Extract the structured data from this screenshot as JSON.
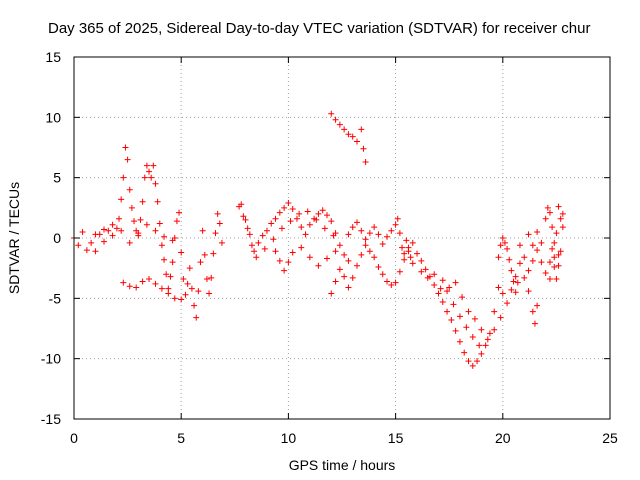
{
  "chart_data": {
    "type": "scatter",
    "title": "Day 365 of 2025, Sidereal Day-to-day VTEC variation (SDTVAR) for receiver chur",
    "xlabel": "GPS time / hours",
    "ylabel": "SDTVAR / TECUs",
    "xlim": [
      0,
      25
    ],
    "ylim": [
      -15,
      15
    ],
    "x_ticks": [
      0,
      5,
      10,
      15,
      20,
      25
    ],
    "y_ticks": [
      -15,
      -10,
      -5,
      0,
      5,
      10,
      15
    ],
    "grid": true,
    "marker": "+",
    "color": "#ff0000",
    "series": [
      {
        "name": "SDTVAR",
        "points": [
          [
            0.0,
            0.0
          ],
          [
            0.2,
            -0.6
          ],
          [
            0.4,
            0.5
          ],
          [
            0.6,
            -1.0
          ],
          [
            0.8,
            -0.4
          ],
          [
            1.0,
            -1.1
          ],
          [
            1.2,
            0.3
          ],
          [
            1.4,
            -0.3
          ],
          [
            1.6,
            0.6
          ],
          [
            1.8,
            0.2
          ],
          [
            2.0,
            0.8
          ],
          [
            2.1,
            1.6
          ],
          [
            2.2,
            3.2
          ],
          [
            2.3,
            5.0
          ],
          [
            2.4,
            7.5
          ],
          [
            2.5,
            6.5
          ],
          [
            2.6,
            4.0
          ],
          [
            2.7,
            2.5
          ],
          [
            2.8,
            1.4
          ],
          [
            2.9,
            0.6
          ],
          [
            3.0,
            0.4
          ],
          [
            3.1,
            1.5
          ],
          [
            3.2,
            3.0
          ],
          [
            3.3,
            5.0
          ],
          [
            3.4,
            6.0
          ],
          [
            3.5,
            5.5
          ],
          [
            3.6,
            5.0
          ],
          [
            3.7,
            6.0
          ],
          [
            3.8,
            4.5
          ],
          [
            3.9,
            3.0
          ],
          [
            4.0,
            1.2
          ],
          [
            4.1,
            -0.6
          ],
          [
            4.2,
            -1.8
          ],
          [
            4.3,
            -3.0
          ],
          [
            4.4,
            -4.2
          ],
          [
            4.5,
            -3.2
          ],
          [
            4.6,
            -2.0
          ],
          [
            4.7,
            0.0
          ],
          [
            4.8,
            1.4
          ],
          [
            4.9,
            2.1
          ],
          [
            5.0,
            -1.2
          ],
          [
            5.1,
            -3.4
          ],
          [
            5.2,
            -4.7
          ],
          [
            5.3,
            -3.8
          ],
          [
            5.4,
            -2.5
          ],
          [
            5.5,
            -4.2
          ],
          [
            5.6,
            -5.6
          ],
          [
            5.7,
            -6.6
          ],
          [
            5.8,
            -4.4
          ],
          [
            5.9,
            -2.0
          ],
          [
            6.0,
            0.6
          ],
          [
            6.1,
            -1.4
          ],
          [
            6.2,
            -3.4
          ],
          [
            6.3,
            -4.6
          ],
          [
            6.4,
            -3.3
          ],
          [
            6.5,
            -1.3
          ],
          [
            6.6,
            0.4
          ],
          [
            6.7,
            2.0
          ],
          [
            6.8,
            1.2
          ],
          [
            6.9,
            -0.4
          ],
          [
            2.3,
            -3.7
          ],
          [
            2.6,
            -4.0
          ],
          [
            2.9,
            -4.1
          ],
          [
            3.2,
            -3.6
          ],
          [
            3.5,
            -3.4
          ],
          [
            3.8,
            -3.8
          ],
          [
            4.1,
            -4.2
          ],
          [
            4.4,
            -4.6
          ],
          [
            4.7,
            -5.0
          ],
          [
            5.0,
            -5.1
          ],
          [
            1.0,
            0.3
          ],
          [
            1.4,
            0.7
          ],
          [
            1.8,
            1.1
          ],
          [
            2.2,
            0.6
          ],
          [
            2.6,
            -0.4
          ],
          [
            3.0,
            0.2
          ],
          [
            3.4,
            1.1
          ],
          [
            3.8,
            0.6
          ],
          [
            4.2,
            0.1
          ],
          [
            4.6,
            -0.2
          ],
          [
            7.7,
            2.6
          ],
          [
            7.8,
            2.8
          ],
          [
            7.9,
            1.8
          ],
          [
            8.0,
            1.5
          ],
          [
            8.1,
            0.8
          ],
          [
            8.2,
            0.3
          ],
          [
            8.3,
            -0.6
          ],
          [
            8.4,
            -1.1
          ],
          [
            8.6,
            -0.4
          ],
          [
            8.8,
            0.2
          ],
          [
            9.0,
            0.6
          ],
          [
            9.2,
            1.2
          ],
          [
            9.4,
            1.6
          ],
          [
            9.6,
            2.1
          ],
          [
            9.8,
            2.5
          ],
          [
            10.0,
            2.9
          ],
          [
            10.2,
            2.4
          ],
          [
            10.4,
            1.6
          ],
          [
            10.6,
            0.9
          ],
          [
            10.8,
            0.3
          ],
          [
            11.0,
            1.1
          ],
          [
            11.2,
            1.6
          ],
          [
            11.4,
            2.0
          ],
          [
            11.6,
            2.3
          ],
          [
            11.8,
            1.9
          ],
          [
            12.0,
            1.4
          ],
          [
            12.2,
            0.4
          ],
          [
            12.4,
            -0.6
          ],
          [
            12.6,
            -1.4
          ],
          [
            12.8,
            -1.9
          ],
          [
            8.5,
            -1.6
          ],
          [
            8.9,
            -0.9
          ],
          [
            9.3,
            -0.1
          ],
          [
            9.7,
            0.8
          ],
          [
            10.1,
            1.4
          ],
          [
            10.5,
            2.0
          ],
          [
            10.9,
            2.2
          ],
          [
            11.3,
            1.5
          ],
          [
            11.7,
            0.8
          ],
          [
            12.1,
            0.2
          ],
          [
            9.4,
            -1.1
          ],
          [
            9.6,
            -1.9
          ],
          [
            9.8,
            -2.7
          ],
          [
            10.0,
            -2.0
          ],
          [
            10.2,
            -1.2
          ],
          [
            10.6,
            -0.8
          ],
          [
            11.0,
            -1.6
          ],
          [
            11.4,
            -2.3
          ],
          [
            11.8,
            -1.7
          ],
          [
            12.2,
            -1.1
          ],
          [
            12.0,
            10.3
          ],
          [
            12.2,
            9.8
          ],
          [
            12.4,
            9.4
          ],
          [
            12.6,
            9.0
          ],
          [
            12.8,
            8.6
          ],
          [
            13.0,
            8.4
          ],
          [
            13.2,
            8.0
          ],
          [
            13.4,
            9.0
          ],
          [
            13.5,
            7.4
          ],
          [
            13.6,
            6.3
          ],
          [
            12.0,
            -4.6
          ],
          [
            12.2,
            -3.6
          ],
          [
            12.4,
            -2.6
          ],
          [
            12.6,
            -3.2
          ],
          [
            12.8,
            -4.1
          ],
          [
            13.0,
            -3.3
          ],
          [
            13.2,
            -2.3
          ],
          [
            13.4,
            -1.4
          ],
          [
            13.6,
            -0.6
          ],
          [
            13.8,
            -1.1
          ],
          [
            14.0,
            -1.6
          ],
          [
            14.2,
            -2.4
          ],
          [
            14.4,
            -3.0
          ],
          [
            14.6,
            -3.6
          ],
          [
            14.8,
            -3.9
          ],
          [
            15.0,
            -3.7
          ],
          [
            15.2,
            -2.8
          ],
          [
            15.4,
            -1.8
          ],
          [
            15.6,
            -0.8
          ],
          [
            15.8,
            -0.4
          ],
          [
            12.8,
            0.3
          ],
          [
            13.0,
            0.9
          ],
          [
            13.2,
            1.3
          ],
          [
            13.4,
            0.6
          ],
          [
            13.6,
            -0.1
          ],
          [
            13.8,
            0.4
          ],
          [
            14.0,
            0.9
          ],
          [
            14.2,
            0.3
          ],
          [
            14.4,
            -0.5
          ],
          [
            14.6,
            0.1
          ],
          [
            14.8,
            0.6
          ],
          [
            15.0,
            1.1
          ],
          [
            15.1,
            1.6
          ],
          [
            15.2,
            0.4
          ],
          [
            15.3,
            -0.8
          ],
          [
            15.4,
            -1.3
          ],
          [
            15.5,
            -0.2
          ],
          [
            15.6,
            -1.1
          ],
          [
            15.7,
            -1.6
          ],
          [
            15.8,
            -2.1
          ],
          [
            16.0,
            -1.3
          ],
          [
            16.2,
            -1.9
          ],
          [
            16.4,
            -2.6
          ],
          [
            16.6,
            -3.2
          ],
          [
            16.8,
            -3.9
          ],
          [
            17.0,
            -4.6
          ],
          [
            17.2,
            -5.3
          ],
          [
            17.4,
            -6.1
          ],
          [
            17.6,
            -6.8
          ],
          [
            17.8,
            -7.7
          ],
          [
            18.0,
            -8.6
          ],
          [
            18.2,
            -9.5
          ],
          [
            18.4,
            -10.2
          ],
          [
            18.6,
            -10.6
          ],
          [
            18.8,
            -10.2
          ],
          [
            19.0,
            -9.6
          ],
          [
            19.2,
            -8.9
          ],
          [
            19.4,
            -7.9
          ],
          [
            19.6,
            -6.1
          ],
          [
            19.8,
            -4.1
          ],
          [
            16.2,
            -2.8
          ],
          [
            16.5,
            -3.3
          ],
          [
            16.8,
            -3.0
          ],
          [
            17.1,
            -4.2
          ],
          [
            17.4,
            -4.4
          ],
          [
            17.7,
            -5.5
          ],
          [
            18.0,
            -6.5
          ],
          [
            18.3,
            -7.4
          ],
          [
            18.6,
            -8.2
          ],
          [
            18.9,
            -8.9
          ],
          [
            17.2,
            -3.5
          ],
          [
            17.5,
            -4.1
          ],
          [
            17.8,
            -3.7
          ],
          [
            18.1,
            -4.9
          ],
          [
            18.4,
            -6.1
          ],
          [
            18.7,
            -6.7
          ],
          [
            19.0,
            -7.6
          ],
          [
            19.3,
            -8.4
          ],
          [
            19.6,
            -7.6
          ],
          [
            19.9,
            -6.6
          ],
          [
            19.8,
            -1.6
          ],
          [
            19.9,
            -0.6
          ],
          [
            20.0,
            0.0
          ],
          [
            20.1,
            -0.4
          ],
          [
            20.2,
            -0.9
          ],
          [
            20.3,
            -1.8
          ],
          [
            20.4,
            -2.7
          ],
          [
            20.5,
            -3.6
          ],
          [
            20.6,
            -4.5
          ],
          [
            20.7,
            -3.7
          ],
          [
            20.0,
            -4.6
          ],
          [
            20.2,
            -5.4
          ],
          [
            20.4,
            -4.3
          ],
          [
            20.6,
            -3.2
          ],
          [
            20.8,
            -2.1
          ],
          [
            21.0,
            -3.3
          ],
          [
            21.2,
            -4.4
          ],
          [
            21.4,
            -6.1
          ],
          [
            21.5,
            -7.1
          ],
          [
            21.6,
            -5.6
          ],
          [
            20.8,
            -0.6
          ],
          [
            21.0,
            -1.6
          ],
          [
            21.2,
            -2.7
          ],
          [
            21.4,
            -1.9
          ],
          [
            21.6,
            -1.0
          ],
          [
            21.8,
            -2.0
          ],
          [
            22.0,
            -2.9
          ],
          [
            22.2,
            -3.4
          ],
          [
            22.4,
            -2.4
          ],
          [
            22.6,
            -1.4
          ],
          [
            21.2,
            0.3
          ],
          [
            21.4,
            -0.6
          ],
          [
            21.6,
            0.5
          ],
          [
            21.8,
            -0.4
          ],
          [
            22.0,
            1.6
          ],
          [
            22.1,
            2.5
          ],
          [
            22.2,
            2.1
          ],
          [
            22.3,
            0.9
          ],
          [
            22.4,
            -0.4
          ],
          [
            22.5,
            0.4
          ],
          [
            22.6,
            2.6
          ],
          [
            22.7,
            1.6
          ],
          [
            22.8,
            0.9
          ],
          [
            22.8,
            2.0
          ],
          [
            22.7,
            -1.1
          ],
          [
            22.6,
            -2.3
          ],
          [
            22.5,
            -3.4
          ],
          [
            22.4,
            -1.6
          ],
          [
            22.3,
            -0.9
          ],
          [
            22.2,
            -2.0
          ]
        ]
      }
    ]
  }
}
